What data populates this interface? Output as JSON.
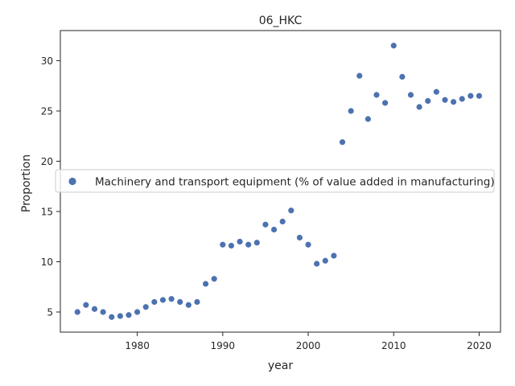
{
  "chart_data": {
    "type": "scatter",
    "title": "06_HKC",
    "xlabel": "year",
    "ylabel": "Proportion",
    "xlim": [
      1971,
      2022.5
    ],
    "ylim": [
      3,
      33
    ],
    "xticks": [
      1980,
      1990,
      2000,
      2010,
      2020
    ],
    "yticks": [
      5,
      10,
      15,
      20,
      25,
      30
    ],
    "grid": false,
    "legend_position": "center-left",
    "color": "#4c72b0",
    "series": [
      {
        "name": "Machinery and transport equipment (% of value added in manufacturing)",
        "x": [
          1973,
          1974,
          1975,
          1976,
          1977,
          1978,
          1979,
          1980,
          1981,
          1982,
          1983,
          1984,
          1985,
          1986,
          1987,
          1988,
          1989,
          1990,
          1991,
          1992,
          1993,
          1994,
          1995,
          1996,
          1997,
          1998,
          1999,
          2000,
          2001,
          2002,
          2003,
          2004,
          2005,
          2006,
          2007,
          2008,
          2009,
          2010,
          2011,
          2012,
          2013,
          2014,
          2015,
          2016,
          2017,
          2018,
          2019,
          2020
        ],
        "y": [
          5.0,
          5.7,
          5.3,
          5.0,
          4.5,
          4.6,
          4.7,
          5.0,
          5.5,
          6.0,
          6.2,
          6.3,
          6.0,
          5.7,
          6.0,
          7.8,
          8.3,
          11.7,
          11.6,
          12.0,
          11.7,
          11.9,
          13.7,
          13.2,
          14.0,
          15.1,
          12.4,
          11.7,
          9.8,
          10.1,
          10.6,
          21.9,
          25.0,
          28.5,
          24.2,
          26.6,
          25.8,
          31.5,
          28.4,
          26.6,
          25.4,
          26.0,
          26.9,
          26.1,
          25.9,
          26.2,
          26.5,
          26.5
        ]
      }
    ]
  }
}
